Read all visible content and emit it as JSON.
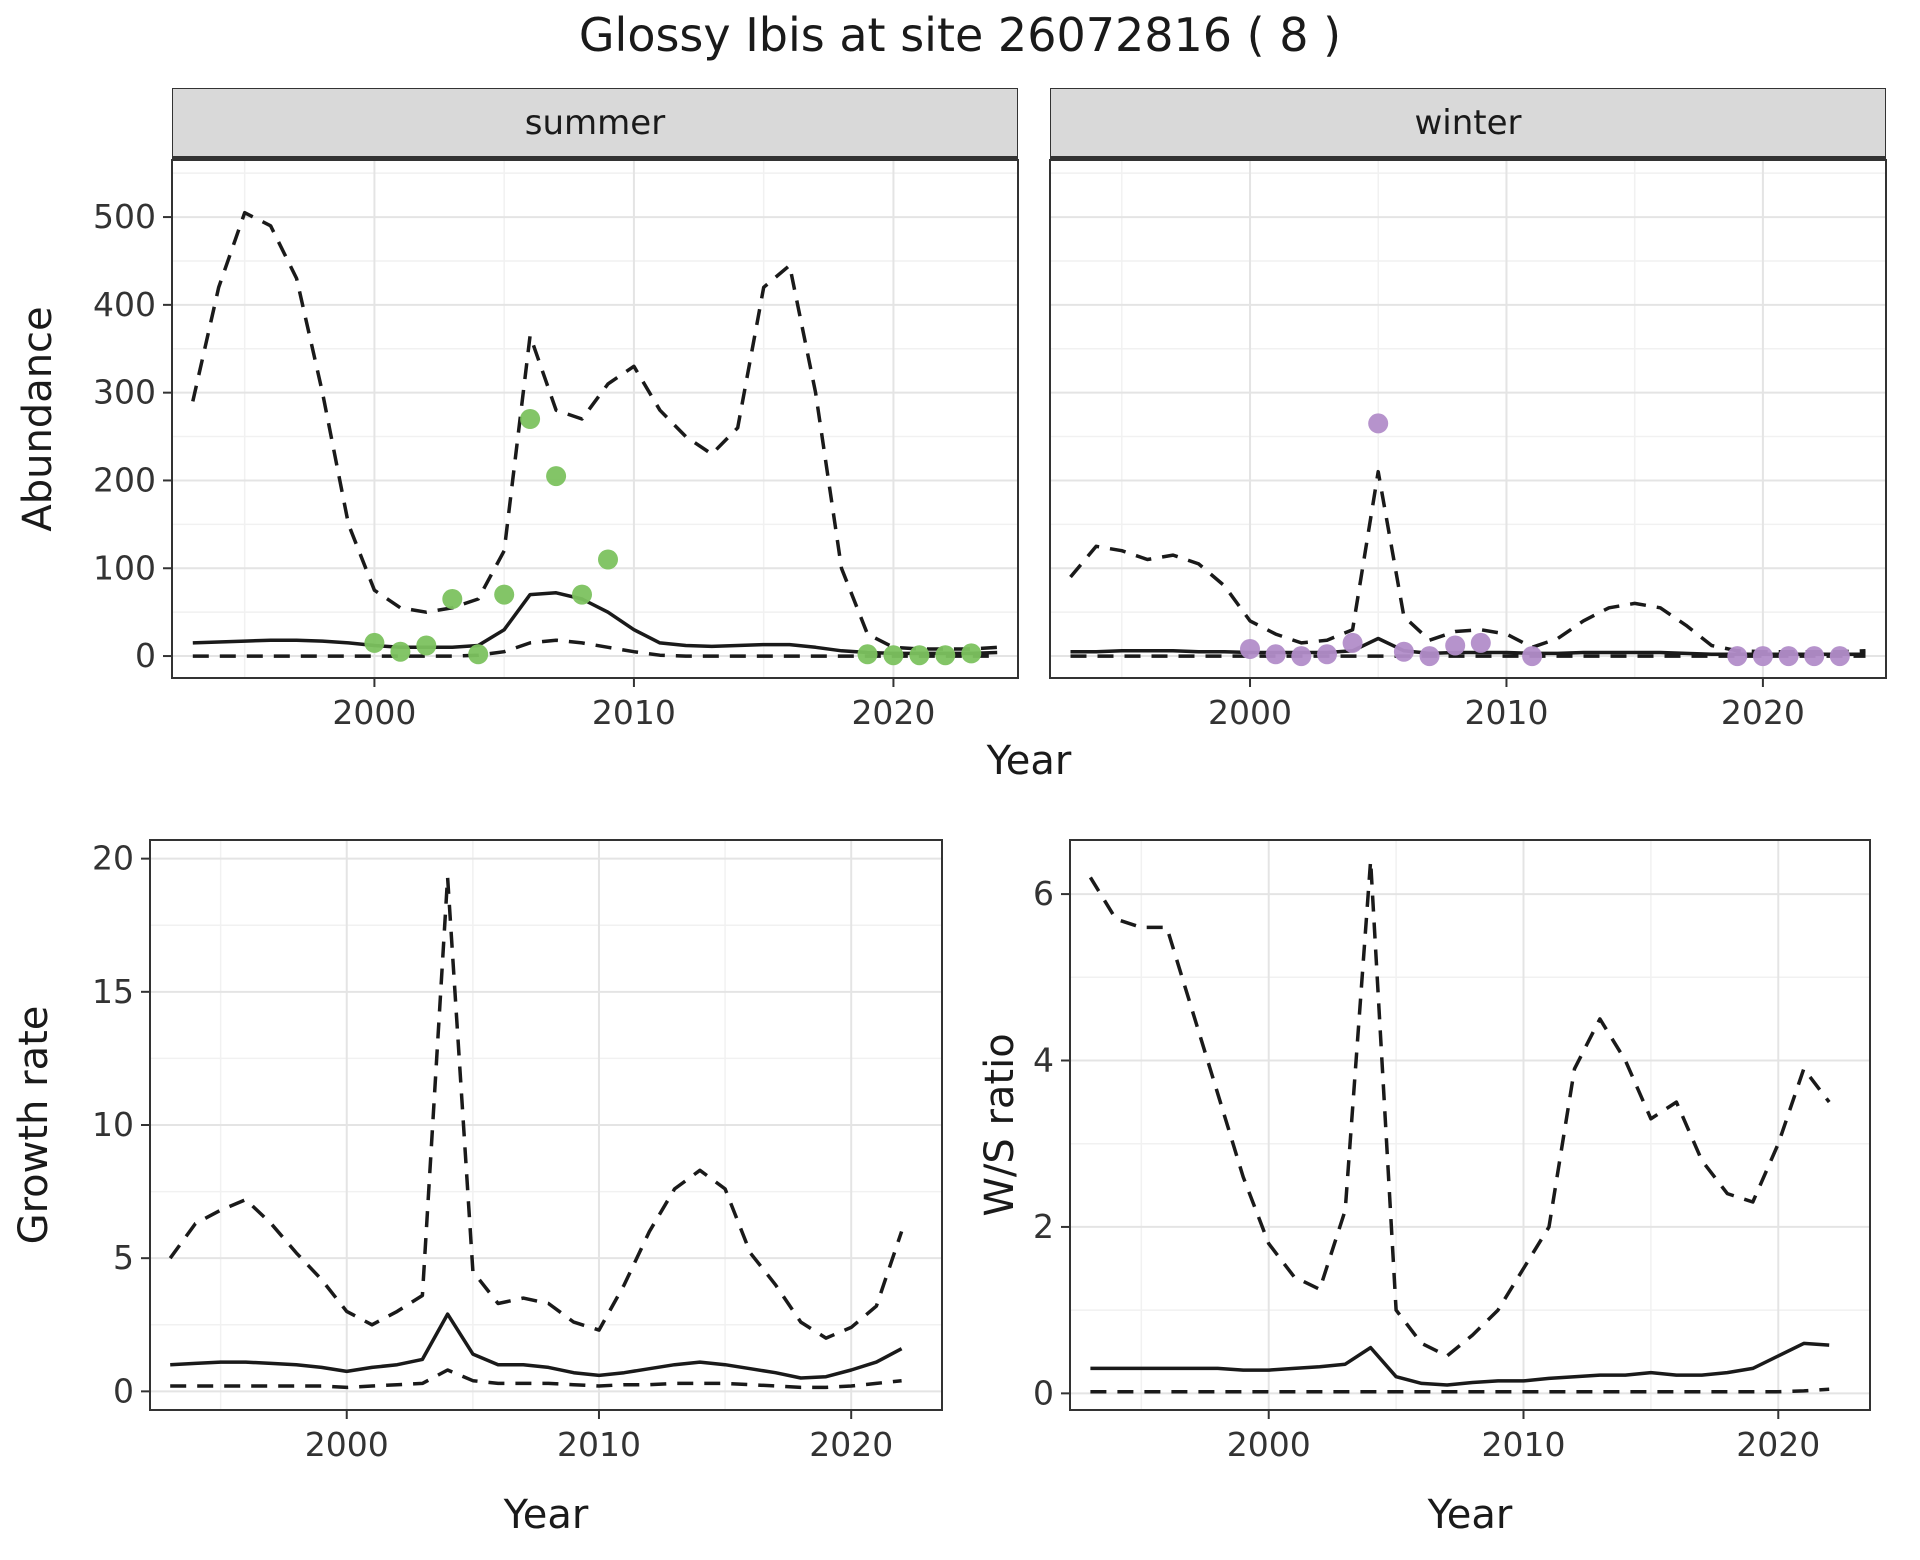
{
  "title": "Glossy Ibis at site 26072816 ( 8 )",
  "colors": {
    "line": "#1A1A1A",
    "grid_major": "#E4E4E4",
    "grid_minor": "#F1F1F1",
    "panel_bg": "#FFFFFF",
    "panel_border": "#333333",
    "strip_bg": "#D9D9D9",
    "tick_text": "#333333",
    "summer_points": "#7CC25F",
    "winter_points": "#B28DC9"
  },
  "chart_data": [
    {
      "type": "line",
      "facet": "summer",
      "xlabel": "Year",
      "ylabel": "Abundance",
      "xlim": [
        1992.2,
        2024.8
      ],
      "ylim": [
        -25,
        565
      ],
      "xticks": [
        2000,
        2010,
        2020
      ],
      "yticks": [
        0,
        100,
        200,
        300,
        400,
        500
      ],
      "show_yticklabels": true,
      "x": [
        1993,
        1994,
        1995,
        1996,
        1997,
        1998,
        1999,
        2000,
        2001,
        2002,
        2003,
        2004,
        2005,
        2006,
        2007,
        2008,
        2009,
        2010,
        2011,
        2012,
        2013,
        2014,
        2015,
        2016,
        2017,
        2018,
        2019,
        2020,
        2021,
        2022,
        2023,
        2024
      ],
      "series": [
        {
          "name": "upper-ci",
          "style": "dashed",
          "values": [
            290,
            420,
            505,
            490,
            430,
            300,
            150,
            75,
            55,
            50,
            55,
            65,
            120,
            365,
            280,
            270,
            310,
            330,
            280,
            250,
            230,
            260,
            420,
            445,
            300,
            100,
            25,
            10,
            8,
            8,
            8,
            10
          ]
        },
        {
          "name": "fit",
          "style": "solid",
          "values": [
            15,
            16,
            17,
            18,
            18,
            17,
            15,
            12,
            10,
            10,
            10,
            12,
            30,
            70,
            72,
            65,
            50,
            30,
            15,
            12,
            11,
            12,
            13,
            13,
            10,
            6,
            4,
            3,
            3,
            3,
            3,
            4
          ]
        },
        {
          "name": "lower-ci",
          "style": "dashed",
          "values": [
            0,
            0,
            0,
            0,
            0,
            0,
            0,
            0,
            0,
            0,
            0,
            1,
            5,
            15,
            18,
            15,
            10,
            5,
            1,
            0,
            0,
            0,
            0,
            0,
            0,
            0,
            0,
            0,
            0,
            0,
            0,
            0
          ]
        }
      ],
      "points": {
        "name": "observed-counts-summer",
        "color": "#7CC25F",
        "x": [
          2000,
          2001,
          2002,
          2003,
          2004,
          2005,
          2006,
          2007,
          2008,
          2009,
          2019,
          2020,
          2021,
          2022,
          2023
        ],
        "y": [
          15,
          5,
          12,
          65,
          2,
          70,
          270,
          205,
          70,
          110,
          2,
          1,
          1,
          1,
          3
        ]
      }
    },
    {
      "type": "line",
      "facet": "winter",
      "xlabel": "Year",
      "ylabel": "Abundance",
      "xlim": [
        1992.2,
        2024.8
      ],
      "ylim": [
        -25,
        565
      ],
      "xticks": [
        2000,
        2010,
        2020
      ],
      "yticks": [
        0,
        100,
        200,
        300,
        400,
        500
      ],
      "show_yticklabels": false,
      "x": [
        1993,
        1994,
        1995,
        1996,
        1997,
        1998,
        1999,
        2000,
        2001,
        2002,
        2003,
        2004,
        2005,
        2006,
        2007,
        2008,
        2009,
        2010,
        2011,
        2012,
        2013,
        2014,
        2015,
        2016,
        2017,
        2018,
        2019,
        2020,
        2021,
        2022,
        2023,
        2024
      ],
      "series": [
        {
          "name": "upper-ci",
          "style": "dashed",
          "values": [
            90,
            125,
            120,
            110,
            115,
            105,
            80,
            40,
            25,
            15,
            18,
            30,
            210,
            45,
            18,
            28,
            30,
            25,
            10,
            20,
            40,
            55,
            60,
            55,
            35,
            12,
            6,
            5,
            5,
            5,
            5,
            6
          ]
        },
        {
          "name": "fit",
          "style": "solid",
          "values": [
            5,
            5,
            6,
            6,
            6,
            5,
            5,
            4,
            4,
            4,
            4,
            6,
            20,
            6,
            3,
            4,
            4,
            4,
            3,
            3,
            4,
            4,
            4,
            4,
            3,
            2,
            2,
            2,
            2,
            2,
            2,
            2
          ]
        },
        {
          "name": "lower-ci",
          "style": "dashed",
          "values": [
            0,
            0,
            0,
            0,
            0,
            0,
            0,
            0,
            0,
            0,
            0,
            0,
            0,
            0,
            0,
            0,
            0,
            0,
            0,
            0,
            0,
            0,
            0,
            0,
            0,
            0,
            0,
            0,
            0,
            0,
            0,
            0
          ]
        }
      ],
      "points": {
        "name": "observed-counts-winter",
        "color": "#B28DC9",
        "x": [
          2000,
          2001,
          2002,
          2003,
          2004,
          2005,
          2006,
          2007,
          2008,
          2009,
          2011,
          2019,
          2020,
          2021,
          2022,
          2023
        ],
        "y": [
          8,
          2,
          0,
          2,
          15,
          265,
          5,
          0,
          12,
          15,
          0,
          0,
          0,
          0,
          0,
          0
        ]
      }
    },
    {
      "type": "line",
      "facet": null,
      "xlabel": "Year",
      "ylabel": "Growth rate",
      "xlim": [
        1992.2,
        2023.6
      ],
      "ylim": [
        -0.7,
        20.7
      ],
      "xticks": [
        2000,
        2010,
        2020
      ],
      "yticks": [
        0,
        5,
        10,
        15,
        20
      ],
      "show_yticklabels": true,
      "x": [
        1993,
        1994,
        1995,
        1996,
        1997,
        1998,
        1999,
        2000,
        2001,
        2002,
        2003,
        2004,
        2005,
        2006,
        2007,
        2008,
        2009,
        2010,
        2011,
        2012,
        2013,
        2014,
        2015,
        2016,
        2017,
        2018,
        2019,
        2020,
        2021,
        2022
      ],
      "series": [
        {
          "name": "upper-ci",
          "style": "dashed",
          "values": [
            5.0,
            6.3,
            6.8,
            7.2,
            6.3,
            5.2,
            4.2,
            3.0,
            2.5,
            3.0,
            3.6,
            19.3,
            4.5,
            3.3,
            3.5,
            3.3,
            2.6,
            2.3,
            4.0,
            6.0,
            7.6,
            8.3,
            7.6,
            5.2,
            4.0,
            2.6,
            2.0,
            2.4,
            3.2,
            6.0
          ]
        },
        {
          "name": "fit",
          "style": "solid",
          "values": [
            1.0,
            1.05,
            1.1,
            1.1,
            1.05,
            1.0,
            0.9,
            0.75,
            0.9,
            1.0,
            1.2,
            2.9,
            1.4,
            1.0,
            1.0,
            0.9,
            0.7,
            0.6,
            0.7,
            0.85,
            1.0,
            1.1,
            1.0,
            0.85,
            0.7,
            0.5,
            0.55,
            0.8,
            1.1,
            1.6
          ]
        },
        {
          "name": "lower-ci",
          "style": "dashed",
          "values": [
            0.2,
            0.2,
            0.2,
            0.2,
            0.2,
            0.2,
            0.2,
            0.15,
            0.2,
            0.25,
            0.3,
            0.8,
            0.4,
            0.3,
            0.3,
            0.3,
            0.25,
            0.2,
            0.25,
            0.25,
            0.3,
            0.3,
            0.3,
            0.25,
            0.2,
            0.15,
            0.15,
            0.2,
            0.3,
            0.4
          ]
        }
      ]
    },
    {
      "type": "line",
      "facet": null,
      "xlabel": "Year",
      "ylabel": "W/S ratio",
      "xlim": [
        1992.2,
        2023.6
      ],
      "ylim": [
        -0.2,
        6.65
      ],
      "xticks": [
        2000,
        2010,
        2020
      ],
      "yticks": [
        0,
        2,
        4,
        6
      ],
      "show_yticklabels": true,
      "x": [
        1993,
        1994,
        1995,
        1996,
        1997,
        1998,
        1999,
        2000,
        2001,
        2002,
        2003,
        2004,
        2005,
        2006,
        2007,
        2008,
        2009,
        2010,
        2011,
        2012,
        2013,
        2014,
        2015,
        2016,
        2017,
        2018,
        2019,
        2020,
        2021,
        2022
      ],
      "series": [
        {
          "name": "upper-ci",
          "style": "dashed",
          "values": [
            6.2,
            5.7,
            5.6,
            5.6,
            4.6,
            3.6,
            2.6,
            1.8,
            1.4,
            1.25,
            2.2,
            6.4,
            1.0,
            0.6,
            0.45,
            0.7,
            1.0,
            1.5,
            2.0,
            3.9,
            4.5,
            4.0,
            3.3,
            3.5,
            2.8,
            2.4,
            2.3,
            3.0,
            3.9,
            3.5
          ]
        },
        {
          "name": "fit",
          "style": "solid",
          "values": [
            0.3,
            0.3,
            0.3,
            0.3,
            0.3,
            0.3,
            0.28,
            0.28,
            0.3,
            0.32,
            0.35,
            0.55,
            0.2,
            0.12,
            0.1,
            0.13,
            0.15,
            0.15,
            0.18,
            0.2,
            0.22,
            0.22,
            0.25,
            0.22,
            0.22,
            0.25,
            0.3,
            0.45,
            0.6,
            0.58
          ]
        },
        {
          "name": "lower-ci",
          "style": "dashed",
          "values": [
            0.02,
            0.02,
            0.02,
            0.02,
            0.02,
            0.02,
            0.02,
            0.02,
            0.02,
            0.02,
            0.02,
            0.02,
            0.02,
            0.02,
            0.02,
            0.02,
            0.02,
            0.02,
            0.02,
            0.02,
            0.02,
            0.02,
            0.02,
            0.02,
            0.02,
            0.02,
            0.02,
            0.02,
            0.03,
            0.05
          ]
        }
      ]
    }
  ]
}
